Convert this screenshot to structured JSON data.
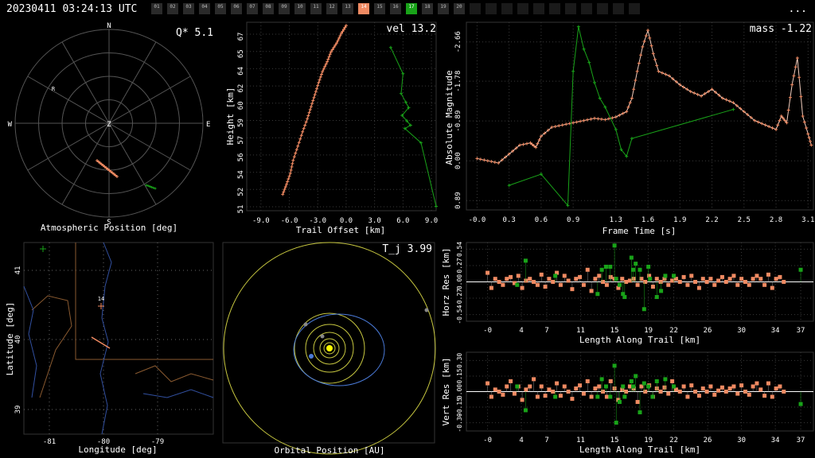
{
  "header": {
    "timestamp": "20230411 03:24:13 UTC",
    "menu_label": "...",
    "cameras": [
      "01",
      "02",
      "03",
      "04",
      "05",
      "06",
      "07",
      "08",
      "09",
      "10",
      "11",
      "12",
      "13",
      "14",
      "15",
      "16",
      "17",
      "18",
      "19",
      "20",
      "",
      "",
      "",
      "",
      "",
      "",
      "",
      "",
      "",
      "",
      ""
    ],
    "highlight_orange": "14",
    "highlight_green": "17"
  },
  "colors": {
    "station1": "#f08a62",
    "station2": "#19a319",
    "grid": "#4a4a4a",
    "sun": "#ffff00",
    "orbits": "#c8c840",
    "meteor_orbit": "#4a7ad8"
  },
  "chart_data": [
    {
      "type": "scatter",
      "name": "atmospheric",
      "xlabel": "Atmospheric Position [deg]",
      "ylabel": "",
      "readout": "Q*  5.1",
      "compass": [
        "N",
        "E",
        "S",
        "W",
        "Z"
      ],
      "radiant_label": "R"
    },
    {
      "type": "scatter",
      "name": "height",
      "xlabel": "Trail Offset [km]",
      "ylabel": "Height [km]",
      "readout": "vel 13.2",
      "xticks": [
        "-9.0",
        "-6.0",
        "-3.0",
        "0.0",
        "3.0",
        "6.0",
        "9.0"
      ],
      "yticks": [
        "51",
        "52",
        "54",
        "56",
        "57",
        "59",
        "60",
        "62",
        "64",
        "65",
        "67"
      ],
      "xlim": [
        -10.5,
        9.5
      ],
      "ylim": [
        50.5,
        67.7
      ],
      "series": [
        {
          "points": [
            [
              -6.7,
              52.0
            ],
            [
              -6.3,
              52.9
            ],
            [
              -5.9,
              53.9
            ],
            [
              -5.6,
              55.1
            ],
            [
              -5.1,
              56.4
            ],
            [
              -4.6,
              57.7
            ],
            [
              -4.1,
              58.9
            ],
            [
              -3.7,
              60.0
            ],
            [
              -3.3,
              61.1
            ],
            [
              -2.9,
              62.2
            ],
            [
              -2.5,
              63.2
            ],
            [
              -2.0,
              64.1
            ],
            [
              -1.6,
              65.0
            ],
            [
              -1.0,
              65.8
            ],
            [
              -0.5,
              66.7
            ],
            [
              0.0,
              67.4
            ]
          ]
        },
        {
          "points": [
            [
              4.7,
              65.4
            ],
            [
              6.0,
              63.0
            ],
            [
              5.8,
              61.2
            ],
            [
              6.3,
              60.4
            ],
            [
              6.6,
              59.9
            ],
            [
              5.9,
              59.2
            ],
            [
              6.4,
              58.7
            ],
            [
              6.8,
              58.3
            ],
            [
              6.2,
              58.0
            ],
            [
              7.9,
              56.7
            ],
            [
              9.5,
              50.9
            ]
          ]
        }
      ]
    },
    {
      "type": "line",
      "name": "magnitude",
      "xlabel": "Frame Time [s]",
      "ylabel": "Absolute Magnitude",
      "readout": "mass -1.22",
      "xticks": [
        "-0.0",
        "0.3",
        "0.6",
        "0.9",
        "1.3",
        "1.6",
        "1.9",
        "2.2",
        "2.5",
        "2.8",
        "3.1"
      ],
      "yticks": [
        "-2.66",
        "-1.78",
        "-0.89",
        "0.00",
        "0.89"
      ],
      "xlim": [
        -0.1,
        3.15
      ],
      "ylim": [
        1.1,
        -3.1
      ],
      "series": [
        {
          "points": [
            [
              0.0,
              -0.05
            ],
            [
              0.1,
              0.0
            ],
            [
              0.2,
              0.05
            ],
            [
              0.3,
              -0.15
            ],
            [
              0.4,
              -0.35
            ],
            [
              0.5,
              -0.4
            ],
            [
              0.55,
              -0.3
            ],
            [
              0.6,
              -0.55
            ],
            [
              0.7,
              -0.75
            ],
            [
              0.8,
              -0.8
            ],
            [
              0.9,
              -0.85
            ],
            [
              1.0,
              -0.9
            ],
            [
              1.1,
              -0.95
            ],
            [
              1.2,
              -0.92
            ],
            [
              1.3,
              -0.98
            ],
            [
              1.4,
              -1.1
            ],
            [
              1.45,
              -1.4
            ],
            [
              1.5,
              -2.0
            ],
            [
              1.55,
              -2.55
            ],
            [
              1.6,
              -2.92
            ],
            [
              1.65,
              -2.4
            ],
            [
              1.7,
              -2.0
            ],
            [
              1.8,
              -1.9
            ],
            [
              1.9,
              -1.7
            ],
            [
              2.0,
              -1.55
            ],
            [
              2.1,
              -1.45
            ],
            [
              2.2,
              -1.6
            ],
            [
              2.3,
              -1.4
            ],
            [
              2.4,
              -1.3
            ],
            [
              2.5,
              -1.1
            ],
            [
              2.6,
              -0.9
            ],
            [
              2.7,
              -0.8
            ],
            [
              2.8,
              -0.7
            ],
            [
              2.85,
              -1.0
            ],
            [
              2.9,
              -0.85
            ],
            [
              2.95,
              -1.7
            ],
            [
              3.0,
              -2.3
            ],
            [
              3.05,
              -1.0
            ],
            [
              3.1,
              -0.6
            ],
            [
              3.13,
              -0.35
            ]
          ]
        },
        {
          "points": [
            [
              0.3,
              0.55
            ],
            [
              0.6,
              0.3
            ],
            [
              0.85,
              1.0
            ],
            [
              0.9,
              -2.0
            ],
            [
              0.95,
              -3.0
            ],
            [
              1.0,
              -2.5
            ],
            [
              1.05,
              -2.2
            ],
            [
              1.1,
              -1.75
            ],
            [
              1.15,
              -1.4
            ],
            [
              1.2,
              -1.2
            ],
            [
              1.3,
              -0.7
            ],
            [
              1.35,
              -0.25
            ],
            [
              1.4,
              -0.1
            ],
            [
              1.45,
              -0.5
            ],
            [
              2.4,
              -1.15
            ]
          ]
        }
      ]
    },
    {
      "type": "scatter",
      "name": "map",
      "xlabel": "Longitude [deg]",
      "ylabel": "Latitude [deg]",
      "xticks": [
        "-81",
        "-80",
        "-79"
      ],
      "yticks": [
        "41",
        "40",
        "39"
      ],
      "station_label": "14"
    },
    {
      "type": "scatter",
      "name": "orbit",
      "xlabel": "Orbital Position [AU]",
      "ylabel": "",
      "readout": "T_j 3.99"
    },
    {
      "type": "scatter",
      "name": "horz_res",
      "xlabel": "Length Along Trail [km]",
      "ylabel": "Horz Res [km]",
      "xticks": [
        "-0",
        "4",
        "7",
        "11",
        "15",
        "19",
        "22",
        "26",
        "30",
        "34",
        "37"
      ],
      "yticks": [
        "0.54",
        "0.27",
        "0.00",
        "-0.27",
        "-0.54"
      ],
      "xlim": [
        -2.5,
        38.5
      ],
      "ylim": [
        -0.65,
        0.65
      ],
      "series": [
        {
          "values": [
            0.15,
            -0.1,
            0.05,
            0.0,
            -0.05,
            0.05,
            0.08,
            -0.02,
            0.1,
            -0.1,
            0.02,
            0.05,
            0.0,
            -0.05,
            0.12,
            -0.08,
            0.05,
            0.0,
            0.15,
            -0.05,
            0.1,
            0.02,
            -0.12,
            0.05,
            0.08,
            -0.05,
            0.2,
            -0.15,
            0.05,
            0.1,
            0.0,
            -0.05,
            0.08,
            0.05,
            -0.1,
            0.05,
            0.0,
            0.02,
            0.05,
            -0.05,
            0.05,
            0.0,
            0.1,
            -0.08,
            0.05,
            0.0,
            0.05,
            -0.05,
            0.02,
            0.05,
            0.0,
            0.08,
            -0.05,
            0.1,
            0.0,
            -0.1,
            0.05,
            0.0,
            0.05,
            -0.05,
            0.02,
            0.08,
            0.0,
            0.05,
            0.1,
            -0.05,
            0.05,
            0.0,
            -0.05,
            0.05,
            0.1,
            0.05,
            -0.05,
            0.12,
            -0.1,
            0.05,
            0.08,
            0.0
          ]
        },
        {
          "points": [
            [
              3.5,
              -0.05
            ],
            [
              4.5,
              0.35
            ],
            [
              8.0,
              0.1
            ],
            [
              13.0,
              -0.2
            ],
            [
              13.5,
              0.2
            ],
            [
              14.0,
              0.25
            ],
            [
              14.5,
              0.25
            ],
            [
              15.0,
              0.6
            ],
            [
              15.2,
              0.05
            ],
            [
              15.6,
              -0.05
            ],
            [
              16.0,
              -0.2
            ],
            [
              16.2,
              -0.25
            ],
            [
              17.0,
              0.4
            ],
            [
              17.2,
              0.2
            ],
            [
              17.5,
              0.3
            ],
            [
              18.0,
              0.2
            ],
            [
              18.5,
              -0.45
            ],
            [
              19.0,
              0.25
            ],
            [
              19.2,
              0.05
            ],
            [
              20.0,
              -0.25
            ],
            [
              20.5,
              -0.15
            ],
            [
              21.0,
              0.1
            ],
            [
              22.0,
              0.1
            ],
            [
              37.0,
              0.2
            ]
          ]
        }
      ]
    },
    {
      "type": "scatter",
      "name": "vert_res",
      "xlabel": "Length Along Trail [km]",
      "ylabel": "Vert Res [km]",
      "xticks": [
        "-0",
        "4",
        "7",
        "11",
        "15",
        "19",
        "22",
        "26",
        "30",
        "34",
        "37"
      ],
      "yticks": [
        "0.30",
        "0.15",
        "0.00",
        "-0.15",
        "-0.30"
      ],
      "xlim": [
        -2.5,
        38.5
      ],
      "ylim": [
        -0.38,
        0.38
      ],
      "series": [
        {
          "values": [
            0.08,
            -0.05,
            0.02,
            0.0,
            -0.03,
            0.05,
            0.1,
            -0.02,
            0.05,
            -0.08,
            0.02,
            0.05,
            0.12,
            -0.05,
            0.05,
            -0.04,
            0.02,
            0.0,
            0.08,
            -0.04,
            0.05,
            0.0,
            -0.07,
            0.03,
            0.06,
            -0.02,
            0.1,
            -0.05,
            0.03,
            0.05,
            0.0,
            -0.05,
            0.1,
            0.03,
            -0.08,
            0.02,
            0.0,
            0.05,
            0.03,
            -0.1,
            0.05,
            0.0,
            0.06,
            -0.05,
            0.03,
            0.0,
            0.04,
            -0.02,
            0.1,
            0.02,
            0.0,
            0.05,
            -0.05,
            0.06,
            0.0,
            -0.04,
            0.03,
            0.0,
            0.05,
            -0.03,
            0.01,
            0.04,
            0.0,
            0.03,
            0.05,
            -0.02,
            0.06,
            0.0,
            -0.03,
            0.05,
            0.08,
            0.02,
            -0.04,
            0.08,
            -0.05,
            0.03,
            0.05,
            0.0
          ]
        },
        {
          "points": [
            [
              3.5,
              0.05
            ],
            [
              4.5,
              -0.18
            ],
            [
              8.0,
              -0.05
            ],
            [
              13.0,
              -0.05
            ],
            [
              13.5,
              0.12
            ],
            [
              14.0,
              0.05
            ],
            [
              14.5,
              -0.05
            ],
            [
              15.0,
              0.25
            ],
            [
              15.2,
              -0.3
            ],
            [
              15.6,
              -0.1
            ],
            [
              16.0,
              0.05
            ],
            [
              16.2,
              -0.05
            ],
            [
              17.0,
              0.1
            ],
            [
              17.2,
              0.05
            ],
            [
              17.5,
              0.15
            ],
            [
              18.0,
              -0.2
            ],
            [
              18.5,
              0.08
            ],
            [
              19.0,
              0.05
            ],
            [
              19.5,
              -0.05
            ],
            [
              20.0,
              0.1
            ],
            [
              21.0,
              0.12
            ],
            [
              22.0,
              0.05
            ],
            [
              37.0,
              -0.12
            ]
          ]
        }
      ]
    }
  ]
}
